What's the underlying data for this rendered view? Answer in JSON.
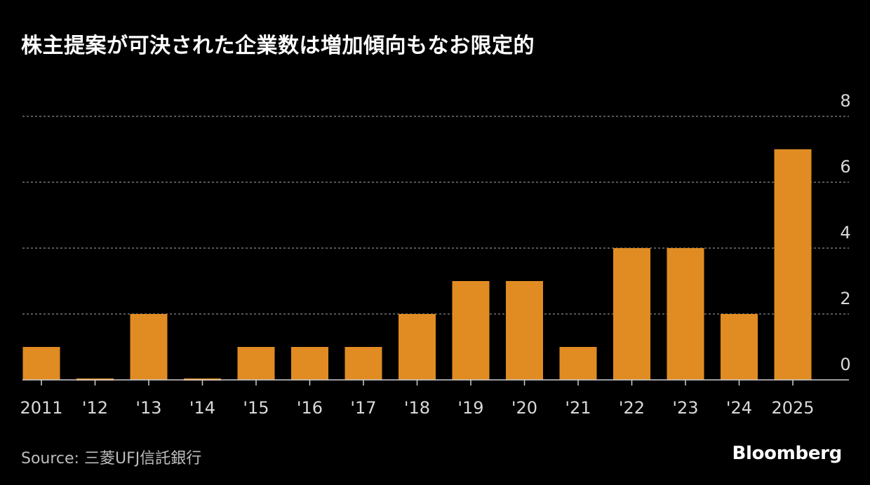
{
  "title": "株主提案が可決された企業数は増加傾向もなお限定的",
  "source": "Source:  三菱UFJ信託銀行",
  "brand": "Bloomberg",
  "colors": {
    "bar": "#E08C22",
    "background": "#000000",
    "grid": "#8a8a8a",
    "axis": "#cfcfcf",
    "tick_text": "#d9d9d9"
  },
  "chart_data": {
    "type": "bar",
    "categories": [
      "2011",
      "'12",
      "'13",
      "'14",
      "'15",
      "'16",
      "'17",
      "'18",
      "'19",
      "'20",
      "'21",
      "'22",
      "'23",
      "'24",
      "2025"
    ],
    "values": [
      1,
      0,
      2,
      0,
      1,
      1,
      1,
      2,
      3,
      3,
      1,
      4,
      4,
      2,
      7
    ],
    "ylim": [
      0,
      8
    ],
    "yticks": [
      "0",
      "2",
      "4",
      "6",
      "8"
    ],
    "ytick_values": [
      0,
      2,
      4,
      6,
      8
    ],
    "grid": true,
    "xlabel": "",
    "ylabel": ""
  }
}
